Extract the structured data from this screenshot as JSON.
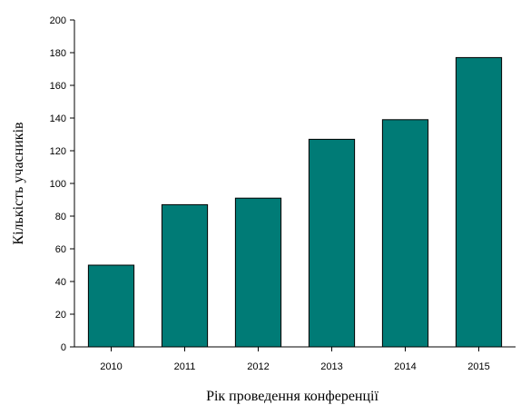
{
  "chart_data": {
    "type": "bar",
    "categories": [
      "2010",
      "2011",
      "2012",
      "2013",
      "2014",
      "2015"
    ],
    "values": [
      50,
      87,
      91,
      127,
      139,
      177
    ],
    "title": "",
    "xlabel": "Рік проведення конференції",
    "ylabel": "Кількість учасників",
    "ylim": [
      0,
      200
    ],
    "yticks": [
      "0",
      "20",
      "40",
      "60",
      "80",
      "100",
      "120",
      "140",
      "160",
      "180",
      "200"
    ],
    "grid": false,
    "legend": "none",
    "bar_color": "#007b76",
    "bar_edge_color": "#000000"
  }
}
